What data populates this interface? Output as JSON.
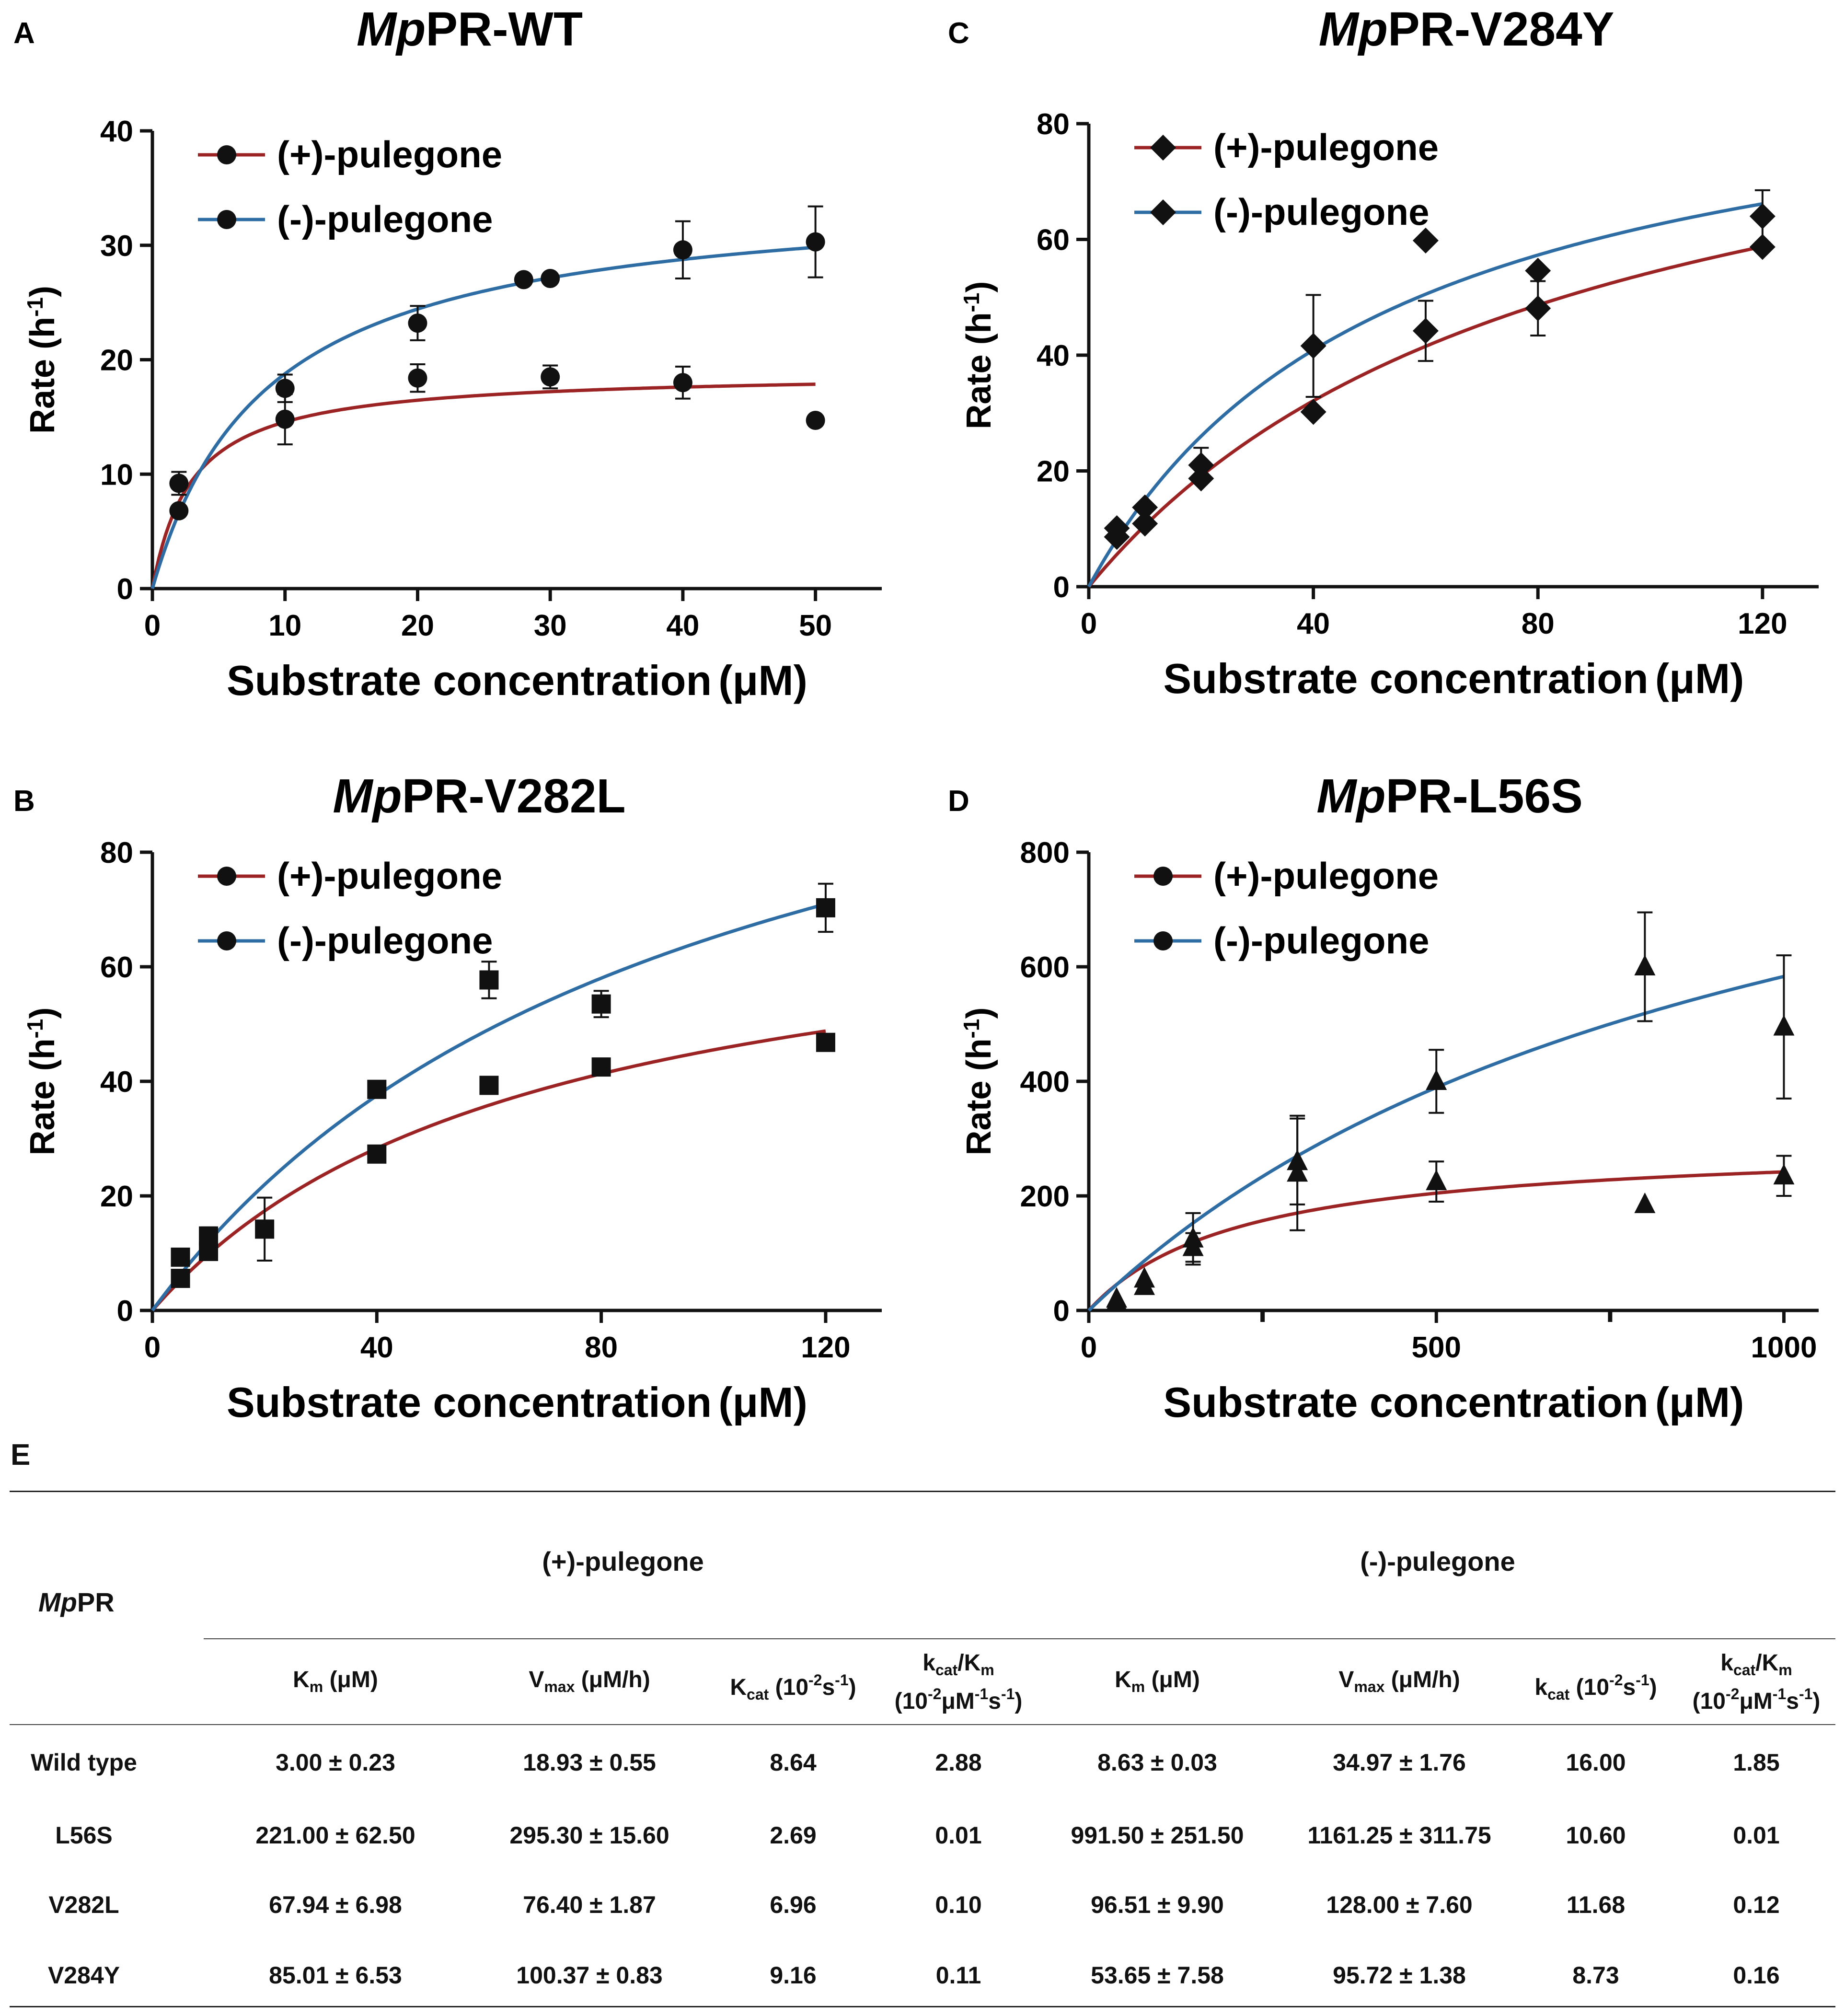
{
  "figure": {
    "panels": [
      "A",
      "B",
      "C",
      "D",
      "E"
    ]
  },
  "chart_data": [
    {
      "id": "A",
      "type": "scatter",
      "title_italic": "Mp",
      "title": "PR-WT",
      "xlabel": "Substrate concentration",
      "xunit": "(μM)",
      "ylabel": "Rate (h",
      "ylabel_sup": "-1",
      "ylabel_end": ")",
      "xlim": [
        0,
        55
      ],
      "ylim": [
        0,
        40
      ],
      "xticks": [
        0,
        10,
        20,
        30,
        40,
        50
      ],
      "yticks": [
        0,
        10,
        20,
        30,
        40
      ],
      "marker": "circle",
      "legend": [
        "(+)-pulegone",
        "(-)-pulegone"
      ],
      "series": [
        {
          "name": "(+)-pulegone",
          "color": "#9b2323",
          "fit": {
            "vmax": 18.93,
            "km": 3.0
          },
          "points": [
            [
              2,
              9.2,
              1.0
            ],
            [
              10,
              14.8,
              2.2
            ],
            [
              20,
              18.4,
              1.2
            ],
            [
              30,
              18.5,
              1.0
            ],
            [
              40,
              18.0,
              1.4
            ],
            [
              50,
              14.7,
              0
            ]
          ]
        },
        {
          "name": "(-)-pulegone",
          "color": "#2e6ca4",
          "fit": {
            "vmax": 34.97,
            "km": 8.63
          },
          "points": [
            [
              2,
              6.8,
              0
            ],
            [
              10,
              17.5,
              1.2
            ],
            [
              20,
              23.2,
              1.5
            ],
            [
              28,
              27.0,
              0
            ],
            [
              30,
              27.1,
              0
            ],
            [
              40,
              29.6,
              2.5
            ],
            [
              50,
              30.3,
              3.1
            ]
          ]
        }
      ]
    },
    {
      "id": "B",
      "type": "scatter",
      "title_italic": "Mp",
      "title": "PR-V282L",
      "xlabel": "Substrate concentration",
      "xunit": "(μM)",
      "ylabel": "Rate (h",
      "ylabel_sup": "-1",
      "ylabel_end": ")",
      "xlim": [
        0,
        130
      ],
      "ylim": [
        0,
        80
      ],
      "xticks": [
        0,
        40,
        80,
        120
      ],
      "yticks": [
        0,
        20,
        40,
        60,
        80
      ],
      "marker": "square",
      "legend": [
        "(+)-pulegone",
        "(-)-pulegone"
      ],
      "series": [
        {
          "name": "(+)-pulegone",
          "color": "#9b2323",
          "fit": {
            "vmax": 76.4,
            "km": 67.94
          },
          "points": [
            [
              5,
              5.6,
              0
            ],
            [
              10,
              10.3,
              0
            ],
            [
              20,
              14.2,
              5.5
            ],
            [
              40,
              27.3,
              1.3
            ],
            [
              60,
              39.3,
              0
            ],
            [
              80,
              42.5,
              1.5
            ],
            [
              120,
              46.8,
              0
            ]
          ]
        },
        {
          "name": "(-)-pulegone",
          "color": "#2e6ca4",
          "fit": {
            "vmax": 128.0,
            "km": 96.51
          },
          "points": [
            [
              5,
              9.3,
              0
            ],
            [
              10,
              13.0,
              1.5
            ],
            [
              40,
              38.6,
              0
            ],
            [
              60,
              57.7,
              3.2
            ],
            [
              80,
              53.5,
              2.3
            ],
            [
              120,
              70.3,
              4.2
            ]
          ]
        }
      ]
    },
    {
      "id": "C",
      "type": "scatter",
      "title_italic": "Mp",
      "title": "PR-V284Y",
      "xlabel": "Substrate concentration",
      "xunit": "(μM)",
      "ylabel": "Rate (h",
      "ylabel_sup": "-1",
      "ylabel_end": ")",
      "xlim": [
        0,
        130
      ],
      "ylim": [
        0,
        80
      ],
      "xticks": [
        0,
        40,
        80,
        120
      ],
      "yticks": [
        0,
        20,
        40,
        60,
        80
      ],
      "marker": "diamond",
      "legend": [
        "(+)-pulegone",
        "(-)-pulegone"
      ],
      "series": [
        {
          "name": "(+)-pulegone",
          "color": "#9b2323",
          "fit": {
            "vmax": 100.37,
            "km": 85.01
          },
          "points": [
            [
              5,
              8.6,
              0
            ],
            [
              10,
              10.9,
              0
            ],
            [
              20,
              18.7,
              0
            ],
            [
              40,
              30.2,
              0
            ],
            [
              60,
              44.2,
              5.2
            ],
            [
              80,
              48.1,
              4.7
            ],
            [
              120,
              58.7,
              0
            ]
          ]
        },
        {
          "name": "(-)-pulegone",
          "color": "#2e6ca4",
          "fit": {
            "vmax": 95.72,
            "km": 53.65
          },
          "points": [
            [
              5,
              10.1,
              0
            ],
            [
              10,
              13.7,
              0
            ],
            [
              20,
              21.0,
              3.0
            ],
            [
              40,
              41.6,
              8.8
            ],
            [
              60,
              59.8,
              0
            ],
            [
              80,
              54.6,
              0
            ],
            [
              120,
              64.0,
              4.5
            ]
          ]
        }
      ]
    },
    {
      "id": "D",
      "type": "scatter",
      "title_italic": "Mp",
      "title": "PR-L56S",
      "xlabel": "Substrate concentration",
      "xunit": "(μM)",
      "ylabel": "Rate (h",
      "ylabel_sup": "-1",
      "ylabel_end": ")",
      "xlim": [
        0,
        1050
      ],
      "ylim": [
        0,
        800
      ],
      "xticks": [
        0,
        500,
        1000
      ],
      "minor_xticks": [
        250,
        750
      ],
      "yticks": [
        0,
        200,
        400,
        600,
        800
      ],
      "marker": "triangle",
      "legend": [
        "(+)-pulegone",
        "(-)-pulegone"
      ],
      "series": [
        {
          "name": "(+)-pulegone",
          "color": "#9b2323",
          "fit": {
            "vmax": 295.3,
            "km": 221.0
          },
          "points": [
            [
              40,
              15,
              0
            ],
            [
              80,
              42,
              0
            ],
            [
              150,
              110,
              25
            ],
            [
              300,
              240,
              100
            ],
            [
              500,
              225,
              35
            ],
            [
              800,
              185,
              0
            ],
            [
              1000,
              235,
              35
            ]
          ]
        },
        {
          "name": "(-)-pulegone",
          "color": "#2e6ca4",
          "fit": {
            "vmax": 1161.25,
            "km": 991.5
          },
          "points": [
            [
              40,
              20,
              0
            ],
            [
              80,
              55,
              0
            ],
            [
              150,
              125,
              45
            ],
            [
              300,
              260,
              75
            ],
            [
              500,
              400,
              55
            ],
            [
              800,
              600,
              95
            ],
            [
              1000,
              495,
              125
            ]
          ]
        }
      ]
    }
  ],
  "table": {
    "panel": "E",
    "row_header": {
      "italic": "Mp",
      "rest": "PR"
    },
    "group_plus": "(+)-pulegone",
    "group_minus": "(-)-pulegone",
    "columns": [
      {
        "a": "K",
        "sub": "m",
        "b": " (μM)"
      },
      {
        "a": "V",
        "sub": "max",
        "b": " (μM/h)"
      },
      {
        "a": "K",
        "sub": "cat",
        "b": " (10",
        "sup": "-2",
        "c": "s",
        "sup2": "-1",
        "d": ")"
      },
      {
        "line1": "k_cat/K_m",
        "line2": "(10^-2μM^-1s^-1)"
      },
      {
        "a": "K",
        "sub": "m",
        "b": " (μM)"
      },
      {
        "a": "V",
        "sub": "max",
        "b": " (μM/h)"
      },
      {
        "a": "k",
        "sub": "cat",
        "b": " (10",
        "sup": "-2",
        "c": "s",
        "sup2": "-1",
        "d": ")"
      },
      {
        "line1": "k_cat/K_m",
        "line2": "(10^-2μM^-1s^-1)"
      }
    ],
    "rows": [
      {
        "name": "Wild type",
        "values": [
          "3.00 ± 0.23",
          "18.93 ± 0.55",
          "8.64",
          "2.88",
          "8.63 ± 0.03",
          "34.97 ± 1.76",
          "16.00",
          "1.85"
        ]
      },
      {
        "name": "L56S",
        "values": [
          "221.00 ± 62.50",
          "295.30 ± 15.60",
          "2.69",
          "0.01",
          "991.50 ± 251.50",
          "1161.25 ± 311.75",
          "10.60",
          "0.01"
        ]
      },
      {
        "name": "V282L",
        "values": [
          "67.94 ± 6.98",
          "76.40 ± 1.87",
          "6.96",
          "0.10",
          "96.51 ± 9.90",
          "128.00 ± 7.60",
          "11.68",
          "0.12"
        ]
      },
      {
        "name": "V284Y",
        "values": [
          "85.01 ± 6.53",
          "100.37 ± 0.83",
          "9.16",
          "0.11",
          "53.65 ± 7.58",
          "95.72 ± 1.38",
          "8.73",
          "0.16"
        ]
      }
    ]
  }
}
